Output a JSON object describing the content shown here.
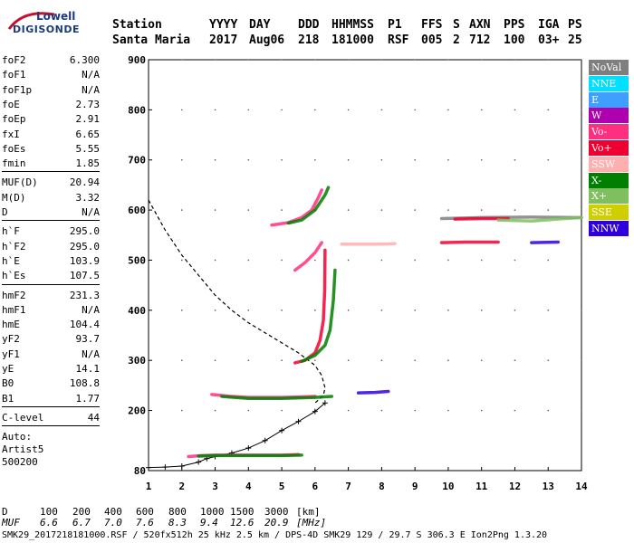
{
  "logo": {
    "line1": "Lowell",
    "line2": "DIGISONDE"
  },
  "header": {
    "row1": [
      "Station",
      "YYYY",
      "DAY",
      "DDD",
      "HHMMSS",
      "P1",
      "FFS",
      "S",
      "AXN",
      "PPS",
      "IGA",
      "PS"
    ],
    "row2": [
      "Santa Maria",
      "2017",
      "Aug06",
      "218",
      "181000",
      "RSF",
      "005",
      "2",
      "712",
      "100",
      "03+",
      "25"
    ]
  },
  "params_group1": [
    {
      "label": "foF2",
      "value": "6.300"
    },
    {
      "label": "foF1",
      "value": "N/A"
    },
    {
      "label": "foF1p",
      "value": "N/A"
    },
    {
      "label": "foE",
      "value": "2.73"
    },
    {
      "label": "foEp",
      "value": "2.91"
    },
    {
      "label": "fxI",
      "value": "6.65"
    },
    {
      "label": "foEs",
      "value": "5.55"
    },
    {
      "label": "fmin",
      "value": "1.85"
    }
  ],
  "params_group2": [
    {
      "label": "MUF(D)",
      "value": "20.94"
    },
    {
      "label": "M(D)",
      "value": "3.32"
    },
    {
      "label": "D",
      "value": "N/A"
    }
  ],
  "params_group3": [
    {
      "label": "h`F",
      "value": "295.0"
    },
    {
      "label": "h`F2",
      "value": "295.0"
    },
    {
      "label": "h`E",
      "value": "103.9"
    },
    {
      "label": "h`Es",
      "value": "107.5"
    }
  ],
  "params_group4": [
    {
      "label": "hmF2",
      "value": "231.3"
    },
    {
      "label": "hmF1",
      "value": "N/A"
    },
    {
      "label": "hmE",
      "value": "104.4"
    },
    {
      "label": "yF2",
      "value": "93.7"
    },
    {
      "label": "yF1",
      "value": "N/A"
    },
    {
      "label": "yE",
      "value": "14.1"
    },
    {
      "label": "B0",
      "value": "108.8"
    },
    {
      "label": "B1",
      "value": "1.77"
    }
  ],
  "params_group5": [
    {
      "label": "C-level",
      "value": "44"
    }
  ],
  "auto": {
    "line1": "Auto:",
    "line2": "Artist5",
    "line3": "500200"
  },
  "legend": [
    {
      "label": "NoVal",
      "color": "#7f7f7f"
    },
    {
      "label": "NNE",
      "color": "#00dfff"
    },
    {
      "label": "E",
      "color": "#3f9fff"
    },
    {
      "label": "W",
      "color": "#af00af"
    },
    {
      "label": "Vo-",
      "color": "#ff2f7f"
    },
    {
      "label": "Vo+",
      "color": "#ef0033"
    },
    {
      "label": "SSW",
      "color": "#ffafaf"
    },
    {
      "label": "X-",
      "color": "#007f00"
    },
    {
      "label": "X+",
      "color": "#7fbf5f"
    },
    {
      "label": "SSE",
      "color": "#cfcf00"
    },
    {
      "label": "NNW",
      "color": "#2f00df"
    }
  ],
  "muf_table": {
    "d_label": "D",
    "d_values": [
      "100",
      "200",
      "400",
      "600",
      "800",
      "1000",
      "1500",
      "3000"
    ],
    "d_unit": "[km]",
    "muf_label": "MUF",
    "muf_values": [
      "6.6",
      "6.7",
      "7.0",
      "7.6",
      "8.3",
      "9.4",
      "12.6",
      "20.9"
    ],
    "muf_unit": "[MHz]"
  },
  "footer": "SMK29_2017218181000.RSF / 520fx512h 25 kHz 2.5 km / DPS-4D SMK29 129 / 29.7 S 306.3 E Ion2Png 1.3.20",
  "chart_data": {
    "type": "scatter",
    "title": "",
    "xlabel": "",
    "ylabel": "",
    "xlim": [
      1,
      14
    ],
    "ylim": [
      80,
      900
    ],
    "x_ticks": [
      1,
      2,
      3,
      4,
      5,
      6,
      7,
      8,
      9,
      10,
      11,
      12,
      13,
      14
    ],
    "y_ticks": [
      80,
      200,
      300,
      400,
      500,
      600,
      700,
      800,
      900
    ],
    "grid": true,
    "profile_curve": {
      "description": "electron density profile",
      "points": [
        [
          1.0,
          620
        ],
        [
          1.5,
          560
        ],
        [
          2.0,
          510
        ],
        [
          2.5,
          470
        ],
        [
          3.0,
          430
        ],
        [
          3.5,
          400
        ],
        [
          4.0,
          375
        ],
        [
          4.5,
          355
        ],
        [
          5.0,
          335
        ],
        [
          5.5,
          315
        ],
        [
          6.0,
          290
        ],
        [
          6.2,
          270
        ],
        [
          6.3,
          245
        ],
        [
          6.25,
          230
        ],
        [
          6.0,
          215
        ]
      ]
    },
    "profile_lower": {
      "points": [
        [
          1.0,
          86
        ],
        [
          1.5,
          87
        ],
        [
          2.0,
          89
        ],
        [
          2.5,
          97
        ],
        [
          2.75,
          104
        ],
        [
          3.0,
          108
        ],
        [
          3.5,
          115
        ],
        [
          4.0,
          125
        ],
        [
          4.5,
          140
        ],
        [
          5.0,
          160
        ],
        [
          5.5,
          178
        ],
        [
          6.0,
          198
        ],
        [
          6.3,
          215
        ]
      ]
    },
    "traces": [
      {
        "name": "E-layer O",
        "color": "#ff2f7f",
        "points": [
          [
            2.2,
            108
          ],
          [
            2.6,
            110
          ],
          [
            3.0,
            111
          ],
          [
            4.0,
            111
          ],
          [
            5.0,
            111
          ],
          [
            5.5,
            112
          ]
        ]
      },
      {
        "name": "E-layer X",
        "color": "#007f00",
        "points": [
          [
            2.5,
            109
          ],
          [
            3.0,
            110
          ],
          [
            4.0,
            110
          ],
          [
            5.0,
            110
          ],
          [
            5.6,
            111
          ]
        ]
      },
      {
        "name": "Es",
        "color": "#ff2f7f",
        "points": [
          [
            2.9,
            232
          ],
          [
            3.5,
            228
          ],
          [
            4.0,
            226
          ],
          [
            4.5,
            226
          ],
          [
            5.0,
            226
          ],
          [
            5.5,
            227
          ],
          [
            6.0,
            228
          ]
        ]
      },
      {
        "name": "Es X",
        "color": "#007f00",
        "points": [
          [
            3.2,
            228
          ],
          [
            4.0,
            224
          ],
          [
            5.0,
            224
          ],
          [
            6.0,
            226
          ],
          [
            6.5,
            228
          ]
        ]
      },
      {
        "name": "F2 O",
        "color": "#ef0033",
        "points": [
          [
            5.4,
            295
          ],
          [
            5.7,
            300
          ],
          [
            6.0,
            315
          ],
          [
            6.15,
            340
          ],
          [
            6.25,
            380
          ],
          [
            6.29,
            440
          ],
          [
            6.3,
            520
          ]
        ]
      },
      {
        "name": "F2 X",
        "color": "#007f00",
        "points": [
          [
            5.6,
            298
          ],
          [
            6.0,
            310
          ],
          [
            6.3,
            330
          ],
          [
            6.45,
            360
          ],
          [
            6.55,
            420
          ],
          [
            6.6,
            480
          ]
        ]
      },
      {
        "name": "F2 2hop O",
        "color": "#ff2f7f",
        "points": [
          [
            4.7,
            570
          ],
          [
            5.2,
            575
          ],
          [
            5.6,
            585
          ],
          [
            5.9,
            600
          ],
          [
            6.1,
            625
          ],
          [
            6.2,
            640
          ]
        ]
      },
      {
        "name": "F2 2hop X",
        "color": "#007f00",
        "points": [
          [
            5.2,
            574
          ],
          [
            5.6,
            580
          ],
          [
            6.0,
            600
          ],
          [
            6.3,
            630
          ],
          [
            6.4,
            645
          ]
        ]
      },
      {
        "name": "mid",
        "color": "#ff2f7f",
        "points": [
          [
            5.4,
            480
          ],
          [
            5.7,
            495
          ],
          [
            6.0,
            515
          ],
          [
            6.2,
            535
          ]
        ]
      },
      {
        "name": "NNW blob",
        "color": "#2f00df",
        "points": [
          [
            7.3,
            235
          ],
          [
            7.8,
            236
          ],
          [
            8.2,
            238
          ]
        ]
      },
      {
        "name": "NoVal",
        "color": "#7f7f7f",
        "points": [
          [
            9.8,
            583
          ],
          [
            11.0,
            585
          ],
          [
            12.5,
            586
          ],
          [
            14.0,
            585
          ]
        ]
      },
      {
        "name": "band1",
        "color": "#ef0033",
        "points": [
          [
            10.2,
            582
          ],
          [
            11.0,
            583
          ],
          [
            11.8,
            583
          ]
        ]
      },
      {
        "name": "band2",
        "color": "#7fbf5f",
        "points": [
          [
            11.5,
            580
          ],
          [
            12.5,
            578
          ],
          [
            13.5,
            583
          ],
          [
            14.0,
            585
          ]
        ]
      },
      {
        "name": "band3",
        "color": "#ef0033",
        "points": [
          [
            9.8,
            535
          ],
          [
            10.5,
            536
          ],
          [
            11.5,
            536
          ]
        ]
      },
      {
        "name": "band4",
        "color": "#2f00df",
        "points": [
          [
            12.5,
            535
          ],
          [
            13.3,
            536
          ]
        ]
      },
      {
        "name": "faint",
        "color": "#ffafaf",
        "points": [
          [
            6.8,
            532
          ],
          [
            7.5,
            532
          ],
          [
            8.0,
            532
          ],
          [
            8.4,
            533
          ]
        ]
      }
    ]
  }
}
